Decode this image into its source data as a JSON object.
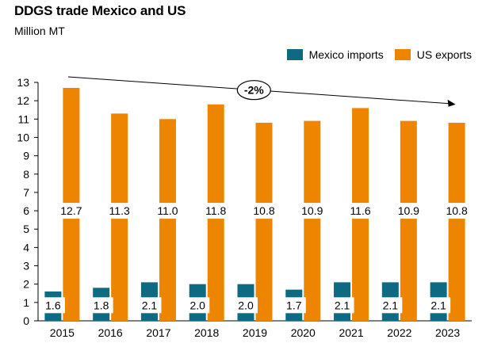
{
  "title": "DDGS trade Mexico and US",
  "subtitle": "Million MT",
  "colors": {
    "mexico": "#0e6a83",
    "us": "#ee8500",
    "axis": "#000000",
    "label_bg": "#ffffff"
  },
  "chart_data": {
    "type": "bar",
    "categories": [
      "2015",
      "2016",
      "2017",
      "2018",
      "2019",
      "2020",
      "2021",
      "2022",
      "2023"
    ],
    "series": [
      {
        "name": "Mexico imports",
        "values": [
          1.6,
          1.8,
          2.1,
          2.0,
          2.0,
          1.7,
          2.1,
          2.1,
          2.1
        ],
        "labels": [
          "1.6",
          "1.8",
          "2.1",
          "2.0",
          "2.0",
          "1.7",
          "2.1",
          "2.1",
          "2.1"
        ]
      },
      {
        "name": "US exports",
        "values": [
          12.7,
          11.3,
          11.0,
          11.8,
          10.8,
          10.9,
          11.6,
          10.9,
          10.8
        ],
        "labels": [
          "12.7",
          "11.3",
          "11.0",
          "11.8",
          "10.8",
          "10.9",
          "11.6",
          "10.9",
          "10.8"
        ]
      }
    ],
    "ylim": [
      0,
      13
    ],
    "yticks": [
      "0",
      "1",
      "2",
      "3",
      "4",
      "5",
      "6",
      "7",
      "8",
      "9",
      "10",
      "11",
      "12",
      "13"
    ],
    "us_label_level": 6,
    "mexico_label_level": 0.85,
    "trend": {
      "label": "-2%",
      "from": {
        "x": "2015",
        "y": 13.3
      },
      "to": {
        "x": "2023",
        "y": 11.8
      }
    },
    "legend_position": "top-right",
    "grid": false
  }
}
